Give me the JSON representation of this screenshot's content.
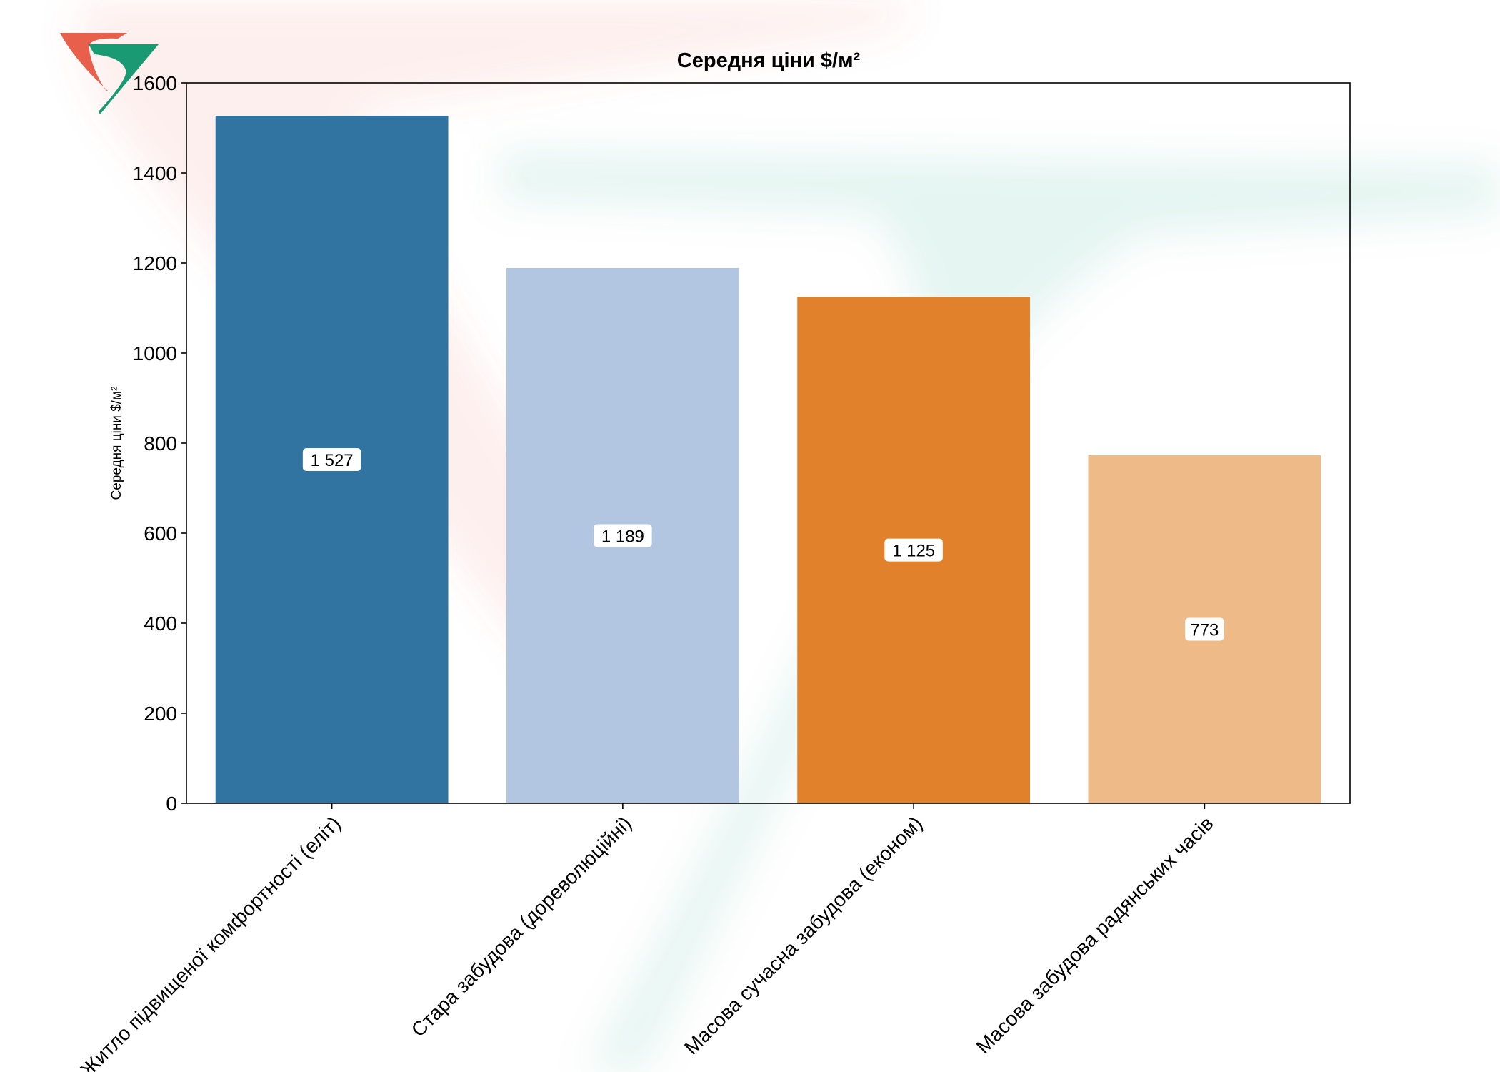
{
  "chart_data": {
    "type": "bar",
    "title": "Середня ціни $/м²",
    "xlabel": "",
    "ylabel": "Середня ціни $/м²",
    "categories": [
      "Житло підвищеної комфортності (еліт)",
      "Стара забудова (дореволюційні)",
      "Масова сучасна забудова (економ)",
      "Масова забудова радянських часів"
    ],
    "values": [
      1527,
      1189,
      1125,
      773
    ],
    "value_labels": [
      "1 527",
      "1 189",
      "1 125",
      "773"
    ],
    "bar_colors": [
      "#3274a1",
      "#b3c6e1",
      "#e1812c",
      "#eebb88"
    ],
    "ylim": [
      0,
      1600
    ],
    "yticks": [
      0,
      200,
      400,
      600,
      800,
      1000,
      1200,
      1400,
      1600
    ],
    "grid": false,
    "legend": "none",
    "logo_colors": [
      "#e8604c",
      "#1a9a73"
    ]
  }
}
